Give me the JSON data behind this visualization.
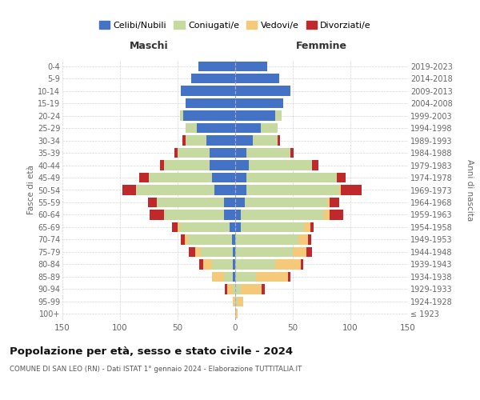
{
  "age_groups": [
    "100+",
    "95-99",
    "90-94",
    "85-89",
    "80-84",
    "75-79",
    "70-74",
    "65-69",
    "60-64",
    "55-59",
    "50-54",
    "45-49",
    "40-44",
    "35-39",
    "30-34",
    "25-29",
    "20-24",
    "15-19",
    "10-14",
    "5-9",
    "0-4"
  ],
  "birth_years": [
    "≤ 1923",
    "1924-1928",
    "1929-1933",
    "1934-1938",
    "1939-1943",
    "1944-1948",
    "1949-1953",
    "1954-1958",
    "1959-1963",
    "1964-1968",
    "1969-1973",
    "1974-1978",
    "1979-1983",
    "1984-1988",
    "1989-1993",
    "1994-1998",
    "1999-2003",
    "2004-2008",
    "2009-2013",
    "2014-2018",
    "2019-2023"
  ],
  "colors": {
    "celibe": "#4472C4",
    "coniugato": "#C6D9A0",
    "vedovo": "#F5C97A",
    "divorziato": "#C0292B"
  },
  "males": {
    "celibe": [
      0,
      0,
      0,
      2,
      2,
      2,
      3,
      5,
      10,
      10,
      18,
      20,
      22,
      22,
      25,
      33,
      45,
      43,
      47,
      38,
      32
    ],
    "coniugato": [
      0,
      0,
      2,
      8,
      18,
      28,
      38,
      43,
      52,
      58,
      68,
      55,
      40,
      28,
      18,
      10,
      3,
      0,
      0,
      0,
      0
    ],
    "vedovo": [
      0,
      2,
      5,
      10,
      8,
      5,
      3,
      2,
      0,
      0,
      0,
      0,
      0,
      0,
      0,
      0,
      0,
      0,
      0,
      0,
      0
    ],
    "divorziato": [
      0,
      0,
      2,
      0,
      3,
      5,
      3,
      5,
      12,
      8,
      12,
      8,
      3,
      3,
      3,
      0,
      0,
      0,
      0,
      0,
      0
    ]
  },
  "females": {
    "celibe": [
      0,
      0,
      0,
      0,
      0,
      0,
      0,
      5,
      5,
      8,
      10,
      10,
      12,
      10,
      15,
      22,
      35,
      42,
      48,
      38,
      28
    ],
    "coniugato": [
      0,
      2,
      5,
      18,
      35,
      50,
      55,
      55,
      72,
      72,
      80,
      78,
      55,
      38,
      22,
      15,
      5,
      0,
      0,
      0,
      0
    ],
    "vedovo": [
      2,
      5,
      18,
      28,
      22,
      12,
      8,
      5,
      5,
      2,
      2,
      0,
      0,
      0,
      0,
      0,
      0,
      0,
      0,
      0,
      0
    ],
    "divorziato": [
      0,
      0,
      3,
      2,
      2,
      5,
      3,
      3,
      12,
      8,
      18,
      8,
      5,
      3,
      2,
      0,
      0,
      0,
      0,
      0,
      0
    ]
  },
  "xlim": 150,
  "title": "Popolazione per età, sesso e stato civile - 2024",
  "subtitle": "COMUNE DI SAN LEO (RN) - Dati ISTAT 1° gennaio 2024 - Elaborazione TUTTITALIA.IT",
  "ylabel_left": "Fasce di età",
  "ylabel_right": "Anni di nascita",
  "xlabel_males": "Maschi",
  "xlabel_females": "Femmine",
  "legend_labels": [
    "Celibi/Nubili",
    "Coniugati/e",
    "Vedovi/e",
    "Divorziati/e"
  ],
  "background_color": "#ffffff",
  "grid_color": "#cccccc"
}
